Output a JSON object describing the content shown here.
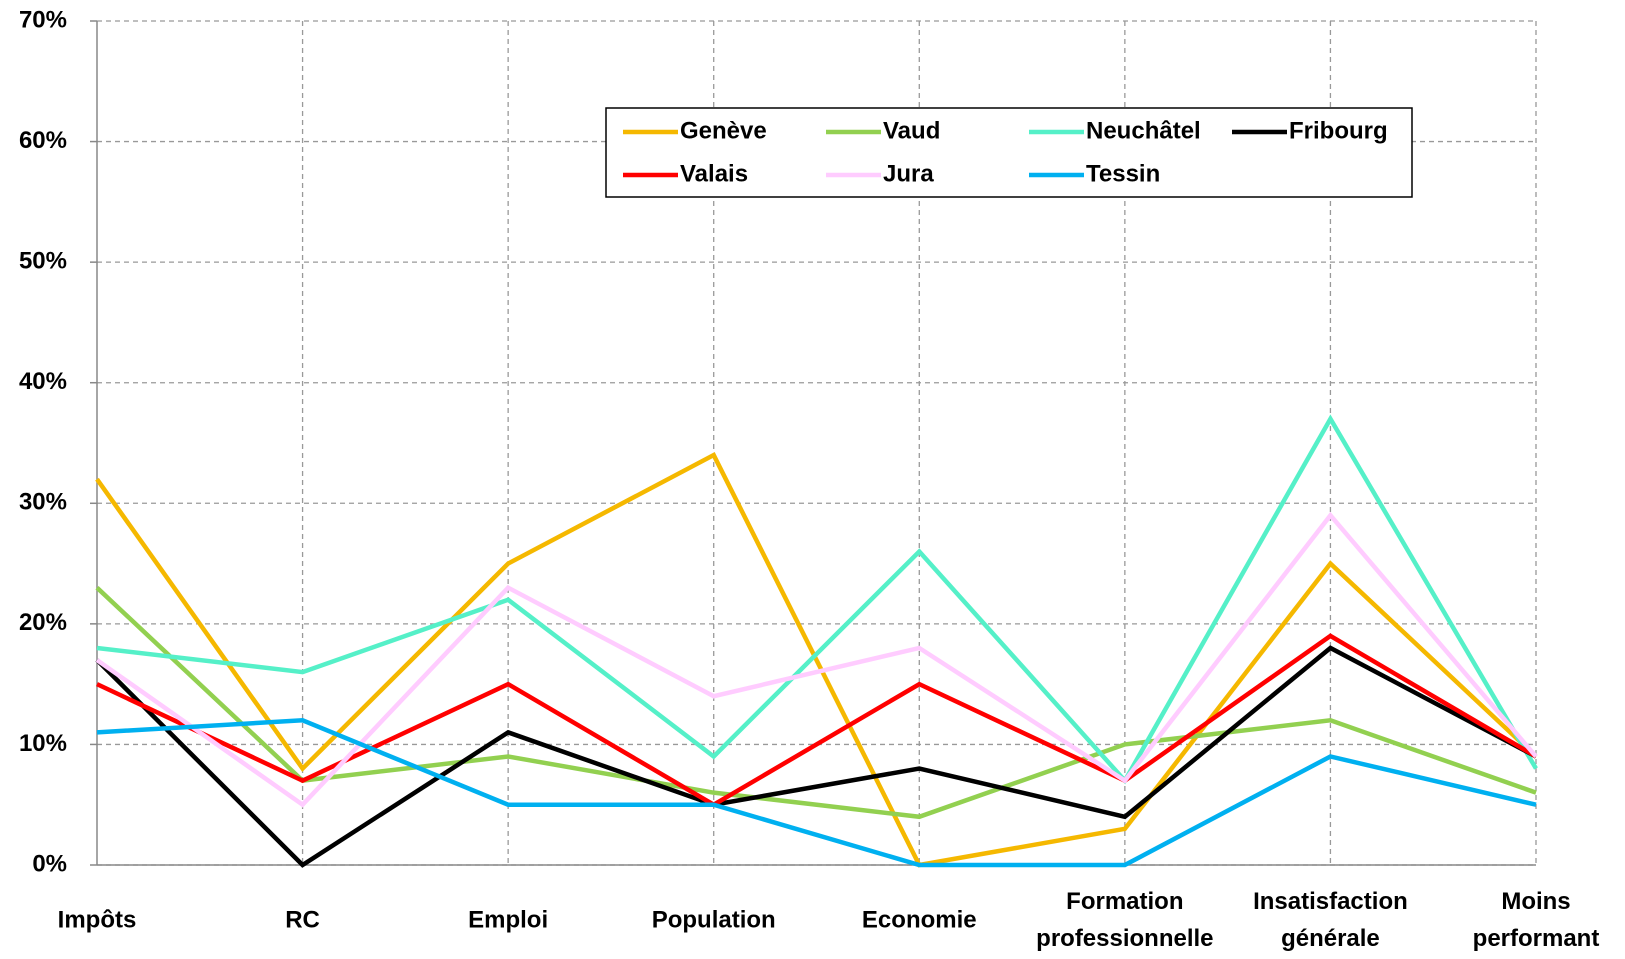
{
  "chart_data": {
    "type": "line",
    "categories": [
      "Impôts",
      "RC",
      "Emploi",
      "Population",
      "Economie",
      "Formation professionnelle",
      "Insatisfaction générale",
      "Moins performant"
    ],
    "series": [
      {
        "name": "Genève",
        "color": "#f5b800",
        "values": [
          32,
          8,
          25,
          34,
          0,
          3,
          25,
          9
        ]
      },
      {
        "name": "Vaud",
        "color": "#92d050",
        "values": [
          23,
          7,
          9,
          6,
          4,
          10,
          12,
          6
        ]
      },
      {
        "name": "Neuchâtel",
        "color": "#55f0c8",
        "values": [
          18,
          16,
          22,
          9,
          26,
          7,
          37,
          8
        ]
      },
      {
        "name": "Fribourg",
        "color": "#000000",
        "values": [
          17,
          0,
          11,
          5,
          8,
          4,
          18,
          9
        ]
      },
      {
        "name": "Valais",
        "color": "#ff0000",
        "values": [
          15,
          7,
          15,
          5,
          15,
          7,
          19,
          9
        ]
      },
      {
        "name": "Jura",
        "color": "#ffccff",
        "values": [
          17,
          5,
          23,
          14,
          18,
          7,
          29,
          9
        ]
      },
      {
        "name": "Tessin",
        "color": "#00b0f0",
        "values": [
          11,
          12,
          5,
          5,
          0,
          0,
          9,
          5
        ]
      }
    ],
    "ylim": [
      0,
      70
    ],
    "yticks": [
      {
        "value": 0,
        "label": "0%"
      },
      {
        "value": 10,
        "label": "10%"
      },
      {
        "value": 20,
        "label": "20%"
      },
      {
        "value": 30,
        "label": "30%"
      },
      {
        "value": 40,
        "label": "40%"
      },
      {
        "value": 50,
        "label": "50%"
      },
      {
        "value": 60,
        "label": "60%"
      },
      {
        "value": 70,
        "label": "70%"
      }
    ],
    "grid": true,
    "legend": "top-right"
  }
}
